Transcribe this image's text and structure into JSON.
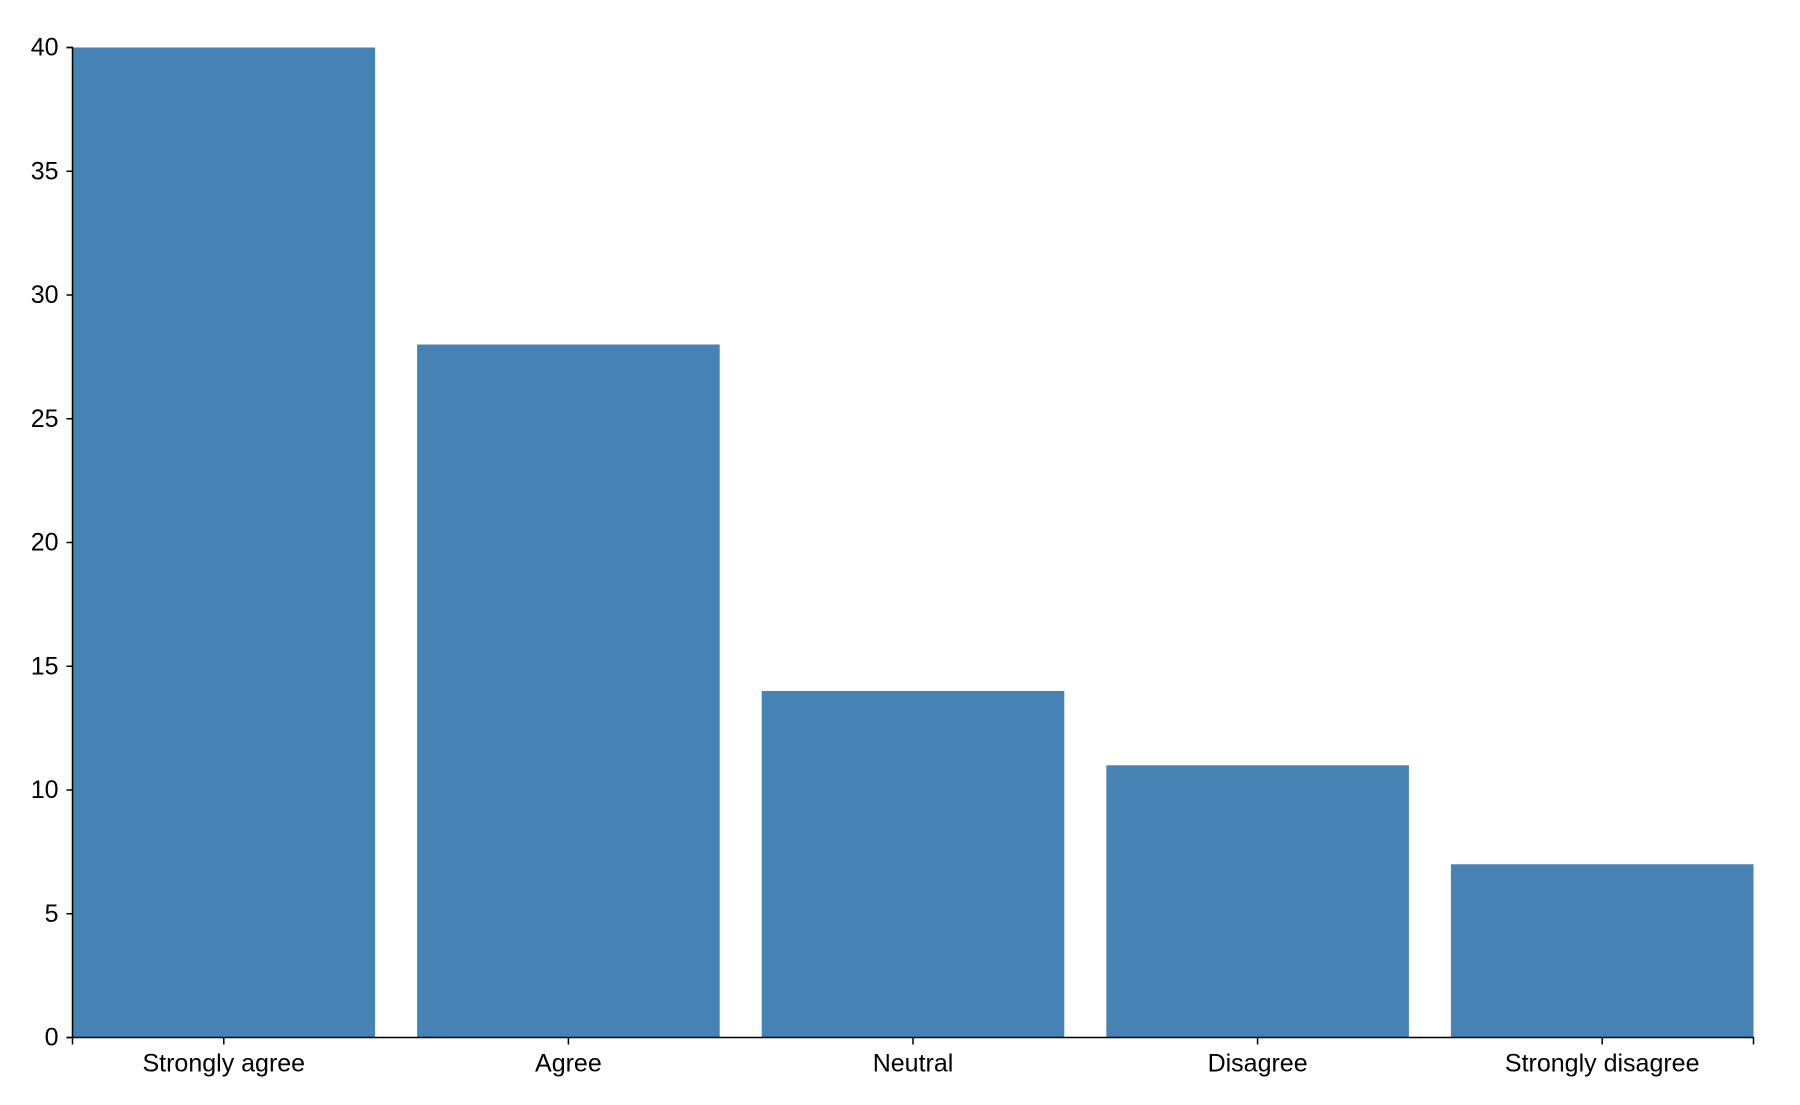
{
  "chart_data": {
    "type": "bar",
    "title": "",
    "xlabel": "",
    "ylabel": "",
    "categories": [
      "Strongly agree",
      "Agree",
      "Neutral",
      "Disagree",
      "Strongly disagree"
    ],
    "values": [
      40,
      28,
      14,
      11,
      7
    ],
    "ylim": [
      0,
      40
    ],
    "yticks": [
      0,
      5,
      10,
      15,
      20,
      25,
      30,
      35,
      40
    ],
    "grid": false,
    "bar_color": "#4682b4"
  }
}
